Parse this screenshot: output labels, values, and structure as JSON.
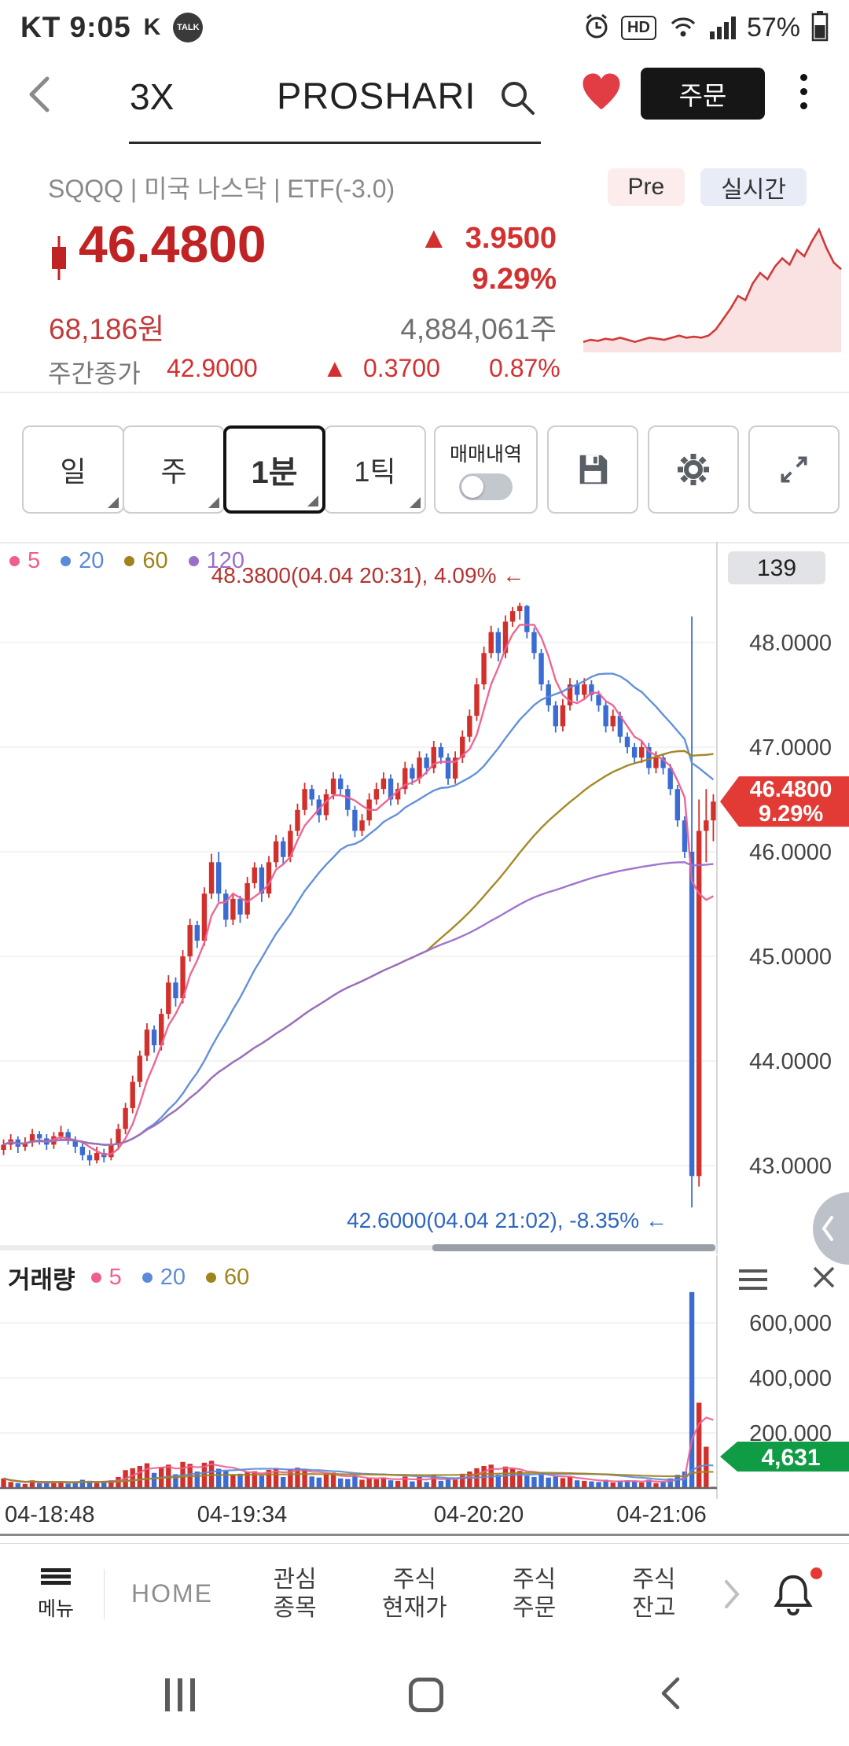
{
  "status_bar": {
    "carrier": "KT",
    "time": "9:05",
    "noti_glyph": "K",
    "talk": "TALK",
    "hd": "HD",
    "battery_pct": "57%"
  },
  "header": {
    "title_left": "3X",
    "title_main": "PROSHARI",
    "order_button": "주문"
  },
  "stock": {
    "info_line": "SQQQ | 미국 나스닥 | ETF(-3.0)",
    "pre_badge": "Pre",
    "realtime_badge": "실시간",
    "arrow": "▲",
    "price": "46.4800",
    "change": "3.9500",
    "change_pct": "9.29%",
    "price_krw": "68,186원",
    "volume_shares": "4,884,061주",
    "weekly_label": "주간종가",
    "weekly_close": "42.9000",
    "weekly_change": "0.3700",
    "weekly_pct": "0.87%"
  },
  "toolbar": {
    "daily": "일",
    "weekly": "주",
    "min1": "1분",
    "tick": "1틱",
    "trade_history": "매매내역"
  },
  "chart": {
    "legend": {
      "ma5": "5",
      "ma20": "20",
      "ma60": "60",
      "ma120": "120"
    }
  },
  "volume_panel": {
    "label": "거래량",
    "legend": {
      "ma5": "5",
      "ma20": "20",
      "ma60": "60"
    }
  },
  "bottom_nav": {
    "menu_label": "메뉴",
    "home": "HOME",
    "items": [
      {
        "l1": "관심",
        "l2": "종목"
      },
      {
        "l1": "주식",
        "l2": "현재가"
      },
      {
        "l1": "주식",
        "l2": "주문"
      },
      {
        "l1": "주식",
        "l2": "잔고"
      }
    ]
  },
  "chart_data": {
    "type": "candlestick+volume",
    "symbol": "SQQQ",
    "interval": "1분",
    "ohlcv_order": [
      "open",
      "high",
      "low",
      "close",
      "volume"
    ],
    "candles": [
      [
        43.15,
        43.25,
        43.1,
        43.2,
        35000
      ],
      [
        43.2,
        43.3,
        43.15,
        43.25,
        22000
      ],
      [
        43.25,
        43.28,
        43.12,
        43.18,
        18000
      ],
      [
        43.18,
        43.27,
        43.14,
        43.22,
        15000
      ],
      [
        43.22,
        43.35,
        43.18,
        43.3,
        28000
      ],
      [
        43.3,
        43.33,
        43.2,
        43.26,
        17000
      ],
      [
        43.26,
        43.3,
        43.15,
        43.2,
        21000
      ],
      [
        43.2,
        43.32,
        43.16,
        43.28,
        19000
      ],
      [
        43.28,
        43.38,
        43.24,
        43.32,
        24000
      ],
      [
        43.32,
        43.35,
        43.2,
        43.24,
        16000
      ],
      [
        43.24,
        43.28,
        43.12,
        43.18,
        20000
      ],
      [
        43.18,
        43.22,
        43.05,
        43.1,
        30000
      ],
      [
        43.1,
        43.15,
        43.0,
        43.05,
        26000
      ],
      [
        43.05,
        43.18,
        43.02,
        43.12,
        18000
      ],
      [
        43.12,
        43.16,
        43.03,
        43.08,
        22000
      ],
      [
        43.08,
        43.26,
        43.05,
        43.2,
        28000
      ],
      [
        43.2,
        43.4,
        43.16,
        43.35,
        40000
      ],
      [
        43.35,
        43.6,
        43.3,
        43.55,
        65000
      ],
      [
        43.55,
        43.86,
        43.5,
        43.8,
        72000
      ],
      [
        43.8,
        44.1,
        43.75,
        44.05,
        80000
      ],
      [
        44.05,
        44.36,
        44.0,
        44.3,
        90000
      ],
      [
        44.3,
        44.34,
        44.08,
        44.15,
        55000
      ],
      [
        44.15,
        44.5,
        44.1,
        44.45,
        75000
      ],
      [
        44.45,
        44.82,
        44.4,
        44.75,
        85000
      ],
      [
        44.75,
        44.8,
        44.52,
        44.6,
        50000
      ],
      [
        44.6,
        45.06,
        44.55,
        45.0,
        95000
      ],
      [
        45.0,
        45.36,
        44.95,
        45.3,
        88000
      ],
      [
        45.3,
        45.34,
        45.08,
        45.15,
        60000
      ],
      [
        45.15,
        45.66,
        45.1,
        45.6,
        92000
      ],
      [
        45.6,
        45.98,
        45.55,
        45.9,
        99000
      ],
      [
        45.9,
        46.0,
        45.52,
        45.6,
        70000
      ],
      [
        45.6,
        45.64,
        45.28,
        45.35,
        62000
      ],
      [
        45.35,
        45.6,
        45.3,
        45.55,
        48000
      ],
      [
        45.55,
        45.58,
        45.32,
        45.4,
        52000
      ],
      [
        45.4,
        45.76,
        45.36,
        45.7,
        58000
      ],
      [
        45.7,
        45.9,
        45.65,
        45.85,
        61000
      ],
      [
        45.85,
        45.88,
        45.52,
        45.6,
        45000
      ],
      [
        45.6,
        45.96,
        45.56,
        45.9,
        66000
      ],
      [
        45.9,
        46.16,
        45.85,
        46.1,
        72000
      ],
      [
        46.1,
        46.14,
        45.88,
        45.95,
        40000
      ],
      [
        45.95,
        46.26,
        45.9,
        46.2,
        68000
      ],
      [
        46.2,
        46.46,
        46.15,
        46.4,
        74000
      ],
      [
        46.4,
        46.66,
        46.35,
        46.6,
        70000
      ],
      [
        46.6,
        46.64,
        46.44,
        46.5,
        42000
      ],
      [
        46.5,
        46.54,
        46.28,
        46.35,
        38000
      ],
      [
        46.35,
        46.6,
        46.3,
        46.55,
        52000
      ],
      [
        46.55,
        46.76,
        46.5,
        46.7,
        56000
      ],
      [
        46.7,
        46.74,
        46.54,
        46.6,
        35000
      ],
      [
        46.6,
        46.64,
        46.34,
        46.4,
        33000
      ],
      [
        46.4,
        46.44,
        46.14,
        46.2,
        45000
      ],
      [
        46.2,
        46.36,
        46.15,
        46.3,
        30000
      ],
      [
        46.3,
        46.56,
        46.25,
        46.5,
        36000
      ],
      [
        46.5,
        46.66,
        46.45,
        46.6,
        32000
      ],
      [
        46.6,
        46.76,
        46.55,
        46.7,
        38000
      ],
      [
        46.7,
        46.74,
        46.44,
        46.5,
        28000
      ],
      [
        46.5,
        46.66,
        46.45,
        46.6,
        26000
      ],
      [
        46.6,
        46.86,
        46.55,
        46.8,
        42000
      ],
      [
        46.8,
        46.84,
        46.64,
        46.7,
        24000
      ],
      [
        46.7,
        46.96,
        46.65,
        46.9,
        40000
      ],
      [
        46.9,
        46.94,
        46.74,
        46.8,
        22000
      ],
      [
        46.8,
        47.06,
        46.75,
        47.0,
        48000
      ],
      [
        47.0,
        47.04,
        46.84,
        46.9,
        26000
      ],
      [
        46.9,
        46.94,
        46.64,
        46.7,
        34000
      ],
      [
        46.7,
        46.96,
        46.65,
        46.9,
        30000
      ],
      [
        46.9,
        47.16,
        46.85,
        47.1,
        52000
      ],
      [
        47.1,
        47.36,
        47.05,
        47.3,
        60000
      ],
      [
        47.3,
        47.66,
        47.25,
        47.6,
        72000
      ],
      [
        47.6,
        47.96,
        47.55,
        47.9,
        80000
      ],
      [
        47.9,
        48.16,
        47.85,
        48.1,
        85000
      ],
      [
        48.1,
        48.14,
        47.82,
        47.9,
        48000
      ],
      [
        47.9,
        48.26,
        47.85,
        48.2,
        78000
      ],
      [
        48.2,
        48.34,
        48.15,
        48.3,
        70000
      ],
      [
        48.3,
        48.38,
        48.22,
        48.35,
        62000
      ],
      [
        48.35,
        48.36,
        48.04,
        48.1,
        45000
      ],
      [
        48.1,
        48.14,
        47.84,
        47.9,
        40000
      ],
      [
        47.9,
        47.94,
        47.54,
        47.6,
        55000
      ],
      [
        47.6,
        47.64,
        47.34,
        47.4,
        38000
      ],
      [
        47.4,
        47.44,
        47.14,
        47.2,
        42000
      ],
      [
        47.2,
        47.46,
        47.15,
        47.4,
        36000
      ],
      [
        47.4,
        47.66,
        47.35,
        47.6,
        40000
      ],
      [
        47.6,
        47.64,
        47.44,
        47.5,
        28000
      ],
      [
        47.5,
        47.66,
        47.45,
        47.6,
        26000
      ],
      [
        47.6,
        47.64,
        47.44,
        47.5,
        24000
      ],
      [
        47.5,
        47.54,
        47.34,
        47.4,
        22000
      ],
      [
        47.4,
        47.44,
        47.14,
        47.2,
        30000
      ],
      [
        47.2,
        47.36,
        47.15,
        47.3,
        20000
      ],
      [
        47.3,
        47.34,
        47.04,
        47.1,
        26000
      ],
      [
        47.1,
        47.14,
        46.94,
        47.0,
        28000
      ],
      [
        47.0,
        47.04,
        46.84,
        46.9,
        24000
      ],
      [
        46.9,
        47.06,
        46.85,
        47.0,
        20000
      ],
      [
        47.0,
        47.04,
        46.74,
        46.8,
        30000
      ],
      [
        46.8,
        46.96,
        46.75,
        46.9,
        18000
      ],
      [
        46.9,
        46.94,
        46.74,
        46.8,
        22000
      ],
      [
        46.8,
        46.84,
        46.54,
        46.6,
        35000
      ],
      [
        46.6,
        46.64,
        46.24,
        46.3,
        48000
      ],
      [
        46.3,
        46.34,
        45.94,
        46.0,
        60000
      ],
      [
        46.0,
        48.25,
        42.6,
        42.9,
        712000
      ],
      [
        42.9,
        46.5,
        42.8,
        46.2,
        310000
      ],
      [
        46.2,
        46.6,
        45.9,
        46.3,
        150000
      ],
      [
        46.3,
        46.55,
        46.1,
        46.48,
        4631
      ]
    ],
    "ma_periods": [
      5,
      20,
      60,
      120
    ],
    "volume_ma_periods": [
      5,
      20,
      60
    ],
    "price_axis": {
      "ticks": [
        48,
        47,
        46,
        45,
        44,
        43
      ],
      "labels": [
        "48.0000",
        "47.0000",
        "46.0000",
        "45.0000",
        "44.0000",
        "43.0000"
      ]
    },
    "top_badge": "139",
    "current_price_badge": [
      "46.4800",
      "9.29%"
    ],
    "high_annotation": "48.3800(04.04 20:31), 4.09% ←",
    "low_annotation": "42.6000(04.04 21:02), -8.35% ←",
    "volume_axis": {
      "ticks": [
        600000,
        400000,
        200000
      ],
      "labels": [
        "600,000",
        "400,000",
        "200,000"
      ]
    },
    "current_volume_badge": "4,631",
    "x_labels": [
      {
        "label": "04-18:48",
        "i": 0
      },
      {
        "label": "04-19:34",
        "i": 33
      },
      {
        "label": "04-20:20",
        "i": 66
      },
      {
        "label": "04-21:06",
        "i": 97
      }
    ],
    "sparkline": [
      43.0,
      43.1,
      43.05,
      43.15,
      43.1,
      43.2,
      43.1,
      43.0,
      43.1,
      43.2,
      43.15,
      43.1,
      43.2,
      43.3,
      43.2,
      43.25,
      43.2,
      43.3,
      43.6,
      44.1,
      44.6,
      45.2,
      45.0,
      45.8,
      46.3,
      46.0,
      46.6,
      47.0,
      46.7,
      47.4,
      47.1,
      47.8,
      48.38,
      47.5,
      46.8,
      46.48
    ],
    "colors": {
      "up": "#d2302c",
      "down": "#3b6cd4",
      "ma5": "#ee5f8f",
      "ma20": "#5b8bd8",
      "ma60": "#a0831c",
      "ma120": "#9a6fc8",
      "grid": "#efefef",
      "axis_text": "#444",
      "badge_red": "#e23b36",
      "badge_green": "#109c44",
      "anno_high": "#b23331",
      "anno_low": "#2f66c0"
    }
  }
}
